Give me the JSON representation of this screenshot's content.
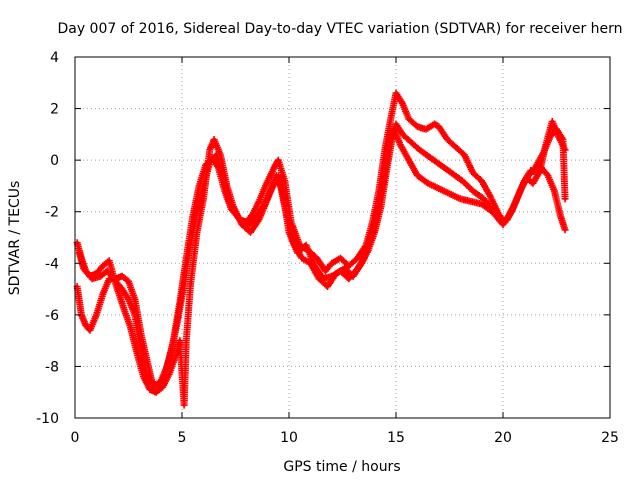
{
  "chart_data": {
    "type": "scatter",
    "title": "Day 007 of 2016, Sidereal Day-to-day VTEC variation (SDTVAR) for receiver hern",
    "xlabel": "GPS time / hours",
    "ylabel": "SDTVAR / TECUs",
    "xlim": [
      0,
      25
    ],
    "ylim": [
      -10,
      4
    ],
    "xticks": [
      0,
      5,
      10,
      15,
      20,
      25
    ],
    "yticks": [
      -10,
      -8,
      -6,
      -4,
      -2,
      0,
      2,
      4
    ],
    "xtick_labels": [
      "0",
      "5",
      "10",
      "15",
      "20",
      "25"
    ],
    "ytick_labels": [
      "-10",
      "-8",
      "-6",
      "-4",
      "-2",
      "0",
      "2",
      "4"
    ],
    "grid": true,
    "marker": "plus",
    "color": "#ff0000",
    "series": [
      {
        "name": "track-1",
        "points": [
          [
            0.1,
            -3.2
          ],
          [
            0.3,
            -3.8
          ],
          [
            0.5,
            -4.3
          ],
          [
            0.8,
            -4.6
          ],
          [
            1.2,
            -4.5
          ],
          [
            1.5,
            -4.3
          ],
          [
            1.8,
            -4.6
          ],
          [
            2.2,
            -5.0
          ],
          [
            2.5,
            -5.4
          ],
          [
            2.8,
            -6.0
          ],
          [
            3.0,
            -7.0
          ],
          [
            3.3,
            -8.2
          ],
          [
            3.6,
            -8.8
          ],
          [
            4.0,
            -8.6
          ],
          [
            4.3,
            -8.0
          ],
          [
            4.6,
            -7.0
          ],
          [
            4.9,
            -5.5
          ],
          [
            5.2,
            -3.8
          ],
          [
            5.5,
            -2.2
          ],
          [
            5.8,
            -1.0
          ],
          [
            6.1,
            -0.2
          ],
          [
            6.4,
            0.1
          ],
          [
            6.7,
            -0.3
          ],
          [
            7.0,
            -1.2
          ],
          [
            7.3,
            -1.9
          ],
          [
            7.7,
            -2.3
          ],
          [
            8.0,
            -2.4
          ],
          [
            8.3,
            -2.1
          ],
          [
            8.6,
            -1.6
          ],
          [
            8.9,
            -1.0
          ],
          [
            9.3,
            -0.3
          ],
          [
            9.5,
            0.0
          ],
          [
            9.8,
            -0.8
          ],
          [
            10.1,
            -2.4
          ],
          [
            10.5,
            -3.3
          ],
          [
            10.9,
            -3.5
          ],
          [
            11.3,
            -3.8
          ],
          [
            11.7,
            -4.3
          ],
          [
            12.0,
            -4.0
          ],
          [
            12.4,
            -3.8
          ],
          [
            12.8,
            -4.1
          ],
          [
            13.2,
            -3.8
          ],
          [
            13.6,
            -3.3
          ],
          [
            13.9,
            -2.4
          ],
          [
            14.2,
            -1.2
          ],
          [
            14.5,
            0.5
          ],
          [
            14.8,
            1.8
          ],
          [
            15.0,
            2.6
          ],
          [
            15.3,
            2.2
          ],
          [
            15.6,
            1.6
          ],
          [
            16.0,
            1.3
          ],
          [
            16.4,
            1.2
          ],
          [
            16.8,
            1.4
          ],
          [
            17.0,
            1.3
          ],
          [
            17.4,
            0.8
          ],
          [
            17.8,
            0.5
          ],
          [
            18.2,
            0.2
          ],
          [
            18.6,
            -0.5
          ],
          [
            19.0,
            -0.8
          ],
          [
            19.4,
            -1.4
          ],
          [
            19.8,
            -2.1
          ],
          [
            20.1,
            -2.4
          ],
          [
            20.4,
            -2.0
          ],
          [
            20.7,
            -1.4
          ],
          [
            21.0,
            -0.8
          ],
          [
            21.3,
            -0.4
          ],
          [
            21.7,
            -0.5
          ],
          [
            22.0,
            0.6
          ],
          [
            22.3,
            1.5
          ],
          [
            22.6,
            0.9
          ],
          [
            22.9,
            0.4
          ]
        ]
      },
      {
        "name": "track-2",
        "points": [
          [
            0.1,
            -4.9
          ],
          [
            0.3,
            -6.0
          ],
          [
            0.5,
            -6.4
          ],
          [
            0.7,
            -6.6
          ],
          [
            1.0,
            -6.0
          ],
          [
            1.3,
            -5.2
          ],
          [
            1.6,
            -4.6
          ],
          [
            1.9,
            -4.6
          ],
          [
            2.2,
            -4.5
          ],
          [
            2.5,
            -4.7
          ],
          [
            2.8,
            -5.4
          ],
          [
            3.1,
            -6.8
          ],
          [
            3.4,
            -7.9
          ],
          [
            3.6,
            -8.6
          ],
          [
            3.9,
            -8.8
          ],
          [
            4.2,
            -8.3
          ],
          [
            4.5,
            -7.4
          ],
          [
            4.8,
            -6.2
          ],
          [
            5.1,
            -4.8
          ],
          [
            5.4,
            -3.2
          ],
          [
            5.7,
            -2.0
          ],
          [
            6.0,
            -1.0
          ],
          [
            6.3,
            -0.1
          ],
          [
            6.6,
            0.2
          ],
          [
            6.9,
            -0.6
          ],
          [
            7.2,
            -1.6
          ],
          [
            7.6,
            -2.2
          ],
          [
            8.0,
            -2.6
          ],
          [
            8.4,
            -2.3
          ],
          [
            8.8,
            -1.8
          ],
          [
            9.2,
            -1.1
          ],
          [
            9.5,
            -0.6
          ],
          [
            9.8,
            -1.8
          ],
          [
            10.2,
            -3.2
          ],
          [
            10.6,
            -3.8
          ],
          [
            11.0,
            -4.0
          ],
          [
            11.4,
            -4.6
          ],
          [
            11.8,
            -4.9
          ],
          [
            12.2,
            -4.4
          ],
          [
            12.6,
            -4.2
          ],
          [
            13.0,
            -4.5
          ],
          [
            13.4,
            -4.0
          ],
          [
            13.7,
            -3.5
          ],
          [
            14.0,
            -2.8
          ],
          [
            14.3,
            -1.8
          ],
          [
            14.6,
            -0.2
          ],
          [
            14.9,
            1.2
          ],
          [
            15.2,
            0.6
          ],
          [
            15.6,
            0.0
          ],
          [
            16.0,
            -0.6
          ],
          [
            16.5,
            -0.9
          ],
          [
            17.0,
            -1.1
          ],
          [
            17.5,
            -1.3
          ],
          [
            18.0,
            -1.5
          ],
          [
            18.5,
            -1.6
          ],
          [
            19.0,
            -1.7
          ],
          [
            19.5,
            -2.0
          ],
          [
            19.9,
            -2.4
          ],
          [
            20.2,
            -2.3
          ],
          [
            20.5,
            -1.8
          ],
          [
            20.8,
            -1.2
          ],
          [
            21.1,
            -0.7
          ],
          [
            21.4,
            -0.9
          ],
          [
            21.8,
            -0.3
          ],
          [
            22.1,
            -0.6
          ],
          [
            22.4,
            -1.2
          ],
          [
            22.7,
            -2.2
          ],
          [
            22.9,
            -2.7
          ]
        ]
      },
      {
        "name": "track-3",
        "points": [
          [
            0.2,
            -3.6
          ],
          [
            0.4,
            -4.2
          ],
          [
            0.7,
            -4.5
          ],
          [
            1.0,
            -4.4
          ],
          [
            1.3,
            -4.1
          ],
          [
            1.6,
            -3.9
          ],
          [
            1.9,
            -4.8
          ],
          [
            2.3,
            -5.8
          ],
          [
            2.6,
            -6.5
          ],
          [
            2.9,
            -7.5
          ],
          [
            3.2,
            -8.4
          ],
          [
            3.5,
            -8.9
          ],
          [
            3.8,
            -9.0
          ],
          [
            4.1,
            -8.8
          ],
          [
            4.4,
            -8.3
          ],
          [
            4.7,
            -7.6
          ],
          [
            4.9,
            -7.0
          ],
          [
            5.1,
            -9.5
          ],
          [
            5.2,
            -7.0
          ],
          [
            5.4,
            -4.8
          ],
          [
            5.7,
            -2.8
          ],
          [
            6.0,
            -1.5
          ],
          [
            6.3,
            0.4
          ],
          [
            6.5,
            0.8
          ],
          [
            6.8,
            0.2
          ],
          [
            7.1,
            -1.0
          ],
          [
            7.4,
            -1.8
          ],
          [
            7.8,
            -2.5
          ],
          [
            8.2,
            -2.8
          ],
          [
            8.6,
            -2.3
          ],
          [
            9.0,
            -1.5
          ],
          [
            9.4,
            -0.6
          ],
          [
            9.7,
            -1.2
          ],
          [
            10.0,
            -2.8
          ],
          [
            10.4,
            -3.6
          ],
          [
            10.8,
            -3.3
          ],
          [
            11.2,
            -4.1
          ],
          [
            11.6,
            -4.6
          ],
          [
            12.0,
            -4.5
          ],
          [
            12.4,
            -4.3
          ],
          [
            12.8,
            -4.6
          ],
          [
            13.2,
            -4.2
          ],
          [
            13.5,
            -3.8
          ],
          [
            13.8,
            -3.0
          ],
          [
            14.1,
            -2.2
          ],
          [
            14.4,
            -0.9
          ],
          [
            14.7,
            0.7
          ],
          [
            15.0,
            1.4
          ],
          [
            15.3,
            1.0
          ],
          [
            15.7,
            0.7
          ],
          [
            16.1,
            0.4
          ],
          [
            16.6,
            0.1
          ],
          [
            17.1,
            -0.2
          ],
          [
            17.6,
            -0.5
          ],
          [
            18.1,
            -0.8
          ],
          [
            18.6,
            -1.2
          ],
          [
            19.1,
            -1.5
          ],
          [
            19.6,
            -2.0
          ],
          [
            20.0,
            -2.5
          ],
          [
            20.3,
            -2.1
          ],
          [
            20.6,
            -1.6
          ],
          [
            20.9,
            -1.0
          ],
          [
            21.2,
            -0.6
          ],
          [
            21.5,
            -0.3
          ],
          [
            21.9,
            0.3
          ],
          [
            22.2,
            0.9
          ],
          [
            22.5,
            1.2
          ],
          [
            22.8,
            0.8
          ],
          [
            22.9,
            -1.5
          ]
        ]
      }
    ]
  }
}
